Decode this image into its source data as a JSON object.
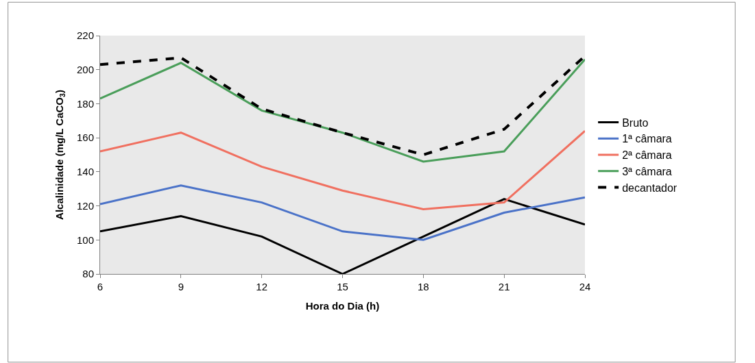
{
  "chart_data": {
    "type": "line",
    "xlabel": "Hora do Dia (h)",
    "ylabel": "Alcalinidade (mg/L CaCO$_{3}$)",
    "x": [
      6,
      9,
      12,
      15,
      18,
      21,
      24
    ],
    "xlim": [
      6,
      24
    ],
    "xticks": [
      6,
      9,
      12,
      15,
      18,
      21,
      24
    ],
    "ylim": [
      80,
      220
    ],
    "yticks": [
      80,
      100,
      120,
      140,
      160,
      180,
      200,
      220
    ],
    "grid": false,
    "legend": "right",
    "marker": "none",
    "series": [
      {
        "name": "Bruto",
        "color": "#000000",
        "values": [
          105,
          114,
          102,
          80,
          102,
          124,
          109
        ]
      },
      {
        "name": "1ª câmara",
        "color": "#4a72c8",
        "values": [
          121,
          132,
          122,
          105,
          100,
          116,
          125
        ]
      },
      {
        "name": "2ª câmara",
        "color": "#f07060",
        "values": [
          152,
          163,
          143,
          129,
          118,
          122,
          164
        ]
      },
      {
        "name": "3ª câmara",
        "color": "#4a9e5a",
        "values": [
          183,
          204,
          176,
          163,
          146,
          152,
          206
        ]
      },
      {
        "name": "decantador",
        "color": "#000000",
        "line_style": "dashed",
        "values": [
          203,
          207,
          177,
          163,
          150,
          165,
          208
        ]
      }
    ]
  }
}
